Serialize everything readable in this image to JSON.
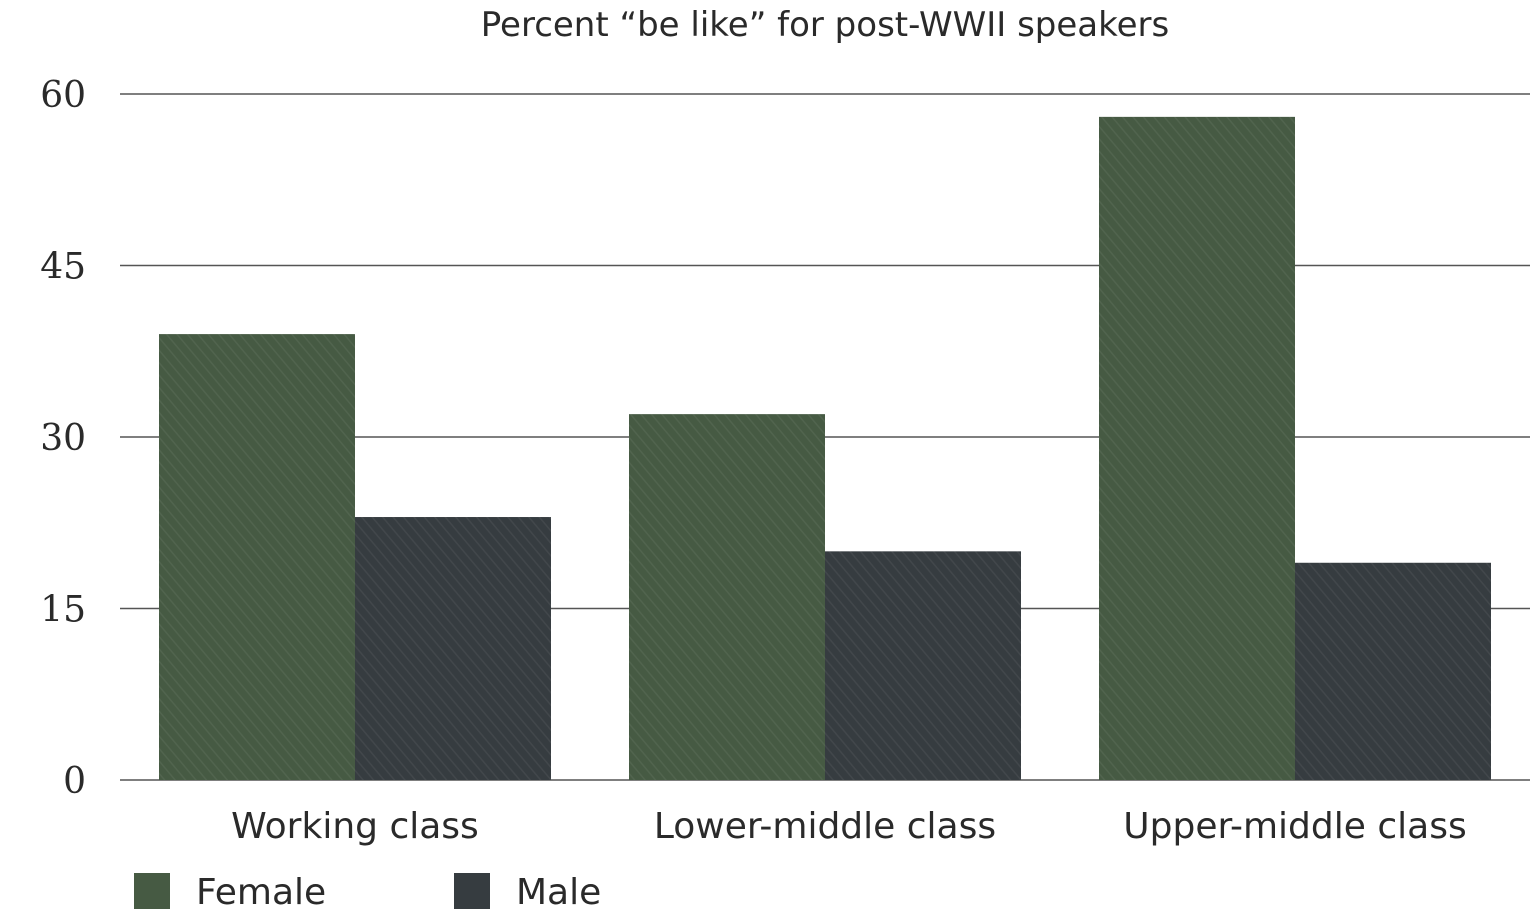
{
  "chart_data": {
    "type": "bar",
    "title": "Percent “be like” for post-WWII speakers",
    "xlabel": "",
    "ylabel": "",
    "categories": [
      "Working class",
      "Lower-middle class",
      "Upper-middle class"
    ],
    "series": [
      {
        "name": "Female",
        "values": [
          39,
          32,
          58
        ],
        "color": "#465a43"
      },
      {
        "name": "Male",
        "values": [
          23,
          20,
          19
        ],
        "color": "#363c40"
      }
    ],
    "ylim": [
      0,
      60
    ],
    "yticks": [
      0,
      15,
      30,
      45,
      60
    ],
    "grid": true,
    "legend_position": "bottom-left"
  }
}
